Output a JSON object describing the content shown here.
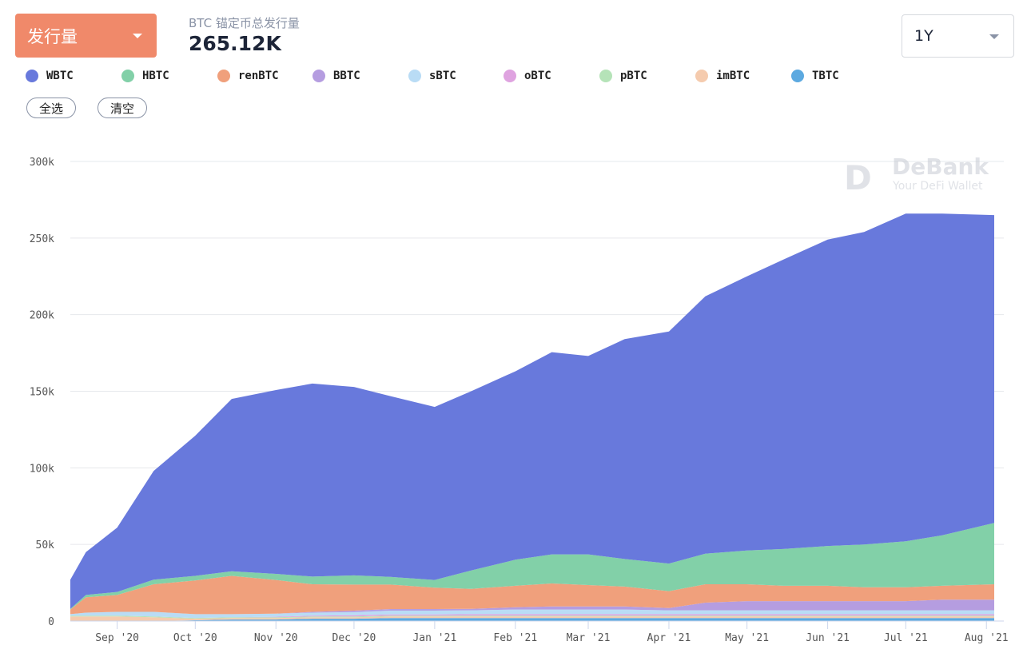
{
  "metric_select": {
    "label": "发行量"
  },
  "summary": {
    "subtitle": "BTC 锚定币总发行量",
    "value": "265.12K"
  },
  "period_select": {
    "label": "1Y"
  },
  "buttons": {
    "select_all": "全选",
    "clear": "清空"
  },
  "watermark": {
    "brand": "DeBank",
    "tagline": "Your DeFi Wallet"
  },
  "chart_data": {
    "type": "area",
    "stacked": true,
    "grid": true,
    "ylim": [
      0,
      300000
    ],
    "yticks": [
      "0",
      "50k",
      "100k",
      "150k",
      "200k",
      "250k",
      "300k"
    ],
    "xticks": [
      "Sep '20",
      "Oct '20",
      "Nov '20",
      "Dec '20",
      "Jan '21",
      "Feb '21",
      "Mar '21",
      "Apr '21",
      "May '21",
      "Jun '21",
      "Jul '21",
      "Aug '21"
    ],
    "x": [
      "2020-08-14",
      "2020-08-20",
      "2020-09-01",
      "2020-09-15",
      "2020-10-01",
      "2020-10-15",
      "2020-11-01",
      "2020-11-15",
      "2020-12-01",
      "2020-12-15",
      "2021-01-01",
      "2021-01-15",
      "2021-02-01",
      "2021-02-15",
      "2021-03-01",
      "2021-03-15",
      "2021-04-01",
      "2021-04-15",
      "2021-05-01",
      "2021-05-15",
      "2021-06-01",
      "2021-06-15",
      "2021-07-01",
      "2021-07-15",
      "2021-08-04"
    ],
    "series": [
      {
        "name": "TBTC",
        "color": "#5ca9e0",
        "values": [
          0,
          0,
          0,
          0,
          500,
          1000,
          1000,
          1500,
          1500,
          2000,
          2000,
          2000,
          2000,
          2000,
          2000,
          2000,
          2000,
          2000,
          2000,
          2000,
          2000,
          2000,
          2000,
          2000,
          2000
        ]
      },
      {
        "name": "imBTC",
        "color": "#f5cbae",
        "values": [
          3000,
          3000,
          3000,
          2500,
          1000,
          1000,
          1000,
          1000,
          1000,
          1000,
          1000,
          1000,
          1000,
          1000,
          1000,
          1000,
          1000,
          1000,
          1000,
          1000,
          1000,
          1000,
          1000,
          1000,
          1000
        ]
      },
      {
        "name": "pBTC",
        "color": "#b5e3b8",
        "values": [
          500,
          500,
          500,
          500,
          500,
          500,
          500,
          500,
          500,
          500,
          500,
          500,
          500,
          500,
          500,
          500,
          500,
          500,
          500,
          500,
          500,
          500,
          500,
          500,
          500
        ]
      },
      {
        "name": "oBTC",
        "color": "#dfa3e0",
        "values": [
          0,
          0,
          0,
          0,
          0,
          0,
          300,
          500,
          800,
          800,
          800,
          1000,
          1000,
          1000,
          1000,
          1000,
          1000,
          1000,
          1000,
          1000,
          1000,
          1000,
          1000,
          1000,
          1000
        ]
      },
      {
        "name": "sBTC",
        "color": "#b9dcf5",
        "values": [
          1000,
          2000,
          2500,
          3000,
          2500,
          2000,
          2000,
          2000,
          2000,
          2500,
          2500,
          2500,
          3000,
          3000,
          3000,
          3000,
          2500,
          2500,
          2500,
          2500,
          2500,
          2500,
          2500,
          2500,
          2500
        ]
      },
      {
        "name": "BBTC",
        "color": "#b59de0",
        "values": [
          0,
          0,
          0,
          0,
          0,
          0,
          0,
          500,
          1000,
          1000,
          1000,
          1000,
          1500,
          2000,
          2000,
          2000,
          1500,
          5000,
          6000,
          6000,
          6000,
          6000,
          6000,
          7000,
          7000
        ]
      },
      {
        "name": "renBTC",
        "color": "#f0a07c",
        "values": [
          3000,
          10000,
          11000,
          18000,
          22000,
          25000,
          22000,
          18000,
          17000,
          16000,
          14000,
          13000,
          14000,
          15000,
          14000,
          13000,
          11000,
          12000,
          11000,
          10000,
          10000,
          9000,
          9000,
          9000,
          10000
        ]
      },
      {
        "name": "HBTC",
        "color": "#82d0a8",
        "values": [
          500,
          1500,
          2000,
          3000,
          3000,
          3000,
          4000,
          5000,
          6000,
          5000,
          5000,
          12000,
          17000,
          19000,
          20000,
          18000,
          18000,
          20000,
          22000,
          24000,
          26000,
          28000,
          30000,
          33000,
          40000
        ]
      },
      {
        "name": "WBTC",
        "color": "#6879dc",
        "values": [
          19000,
          28000,
          42000,
          71000,
          91500,
          112500,
          120000,
          126000,
          123000,
          118000,
          113000,
          117000,
          123000,
          132000,
          129500,
          143500,
          151500,
          168000,
          179000,
          189000,
          200000,
          204000,
          214000,
          210000,
          201000
        ]
      }
    ]
  }
}
